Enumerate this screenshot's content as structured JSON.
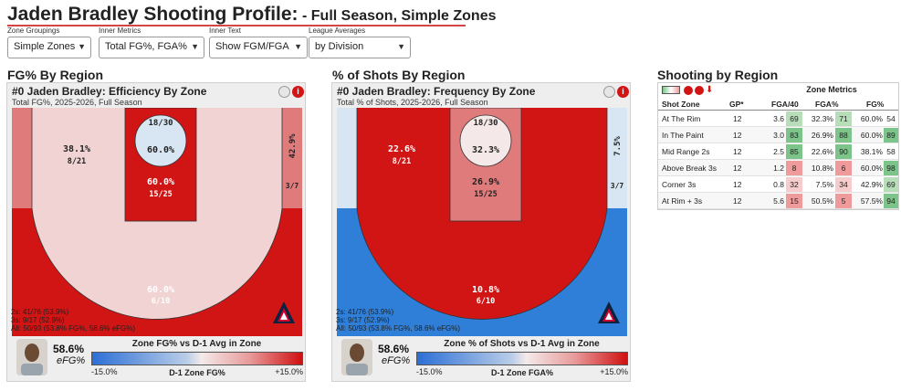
{
  "title": {
    "main": "Jaden Bradley Shooting Profile:",
    "dash": " - ",
    "season": "Full Season",
    "comma": ", ",
    "zones": "Simple Zones"
  },
  "controls": [
    {
      "label": "Zone Groupings",
      "value": "Simple Zones"
    },
    {
      "label": "Inner Metrics",
      "value": "Total FG%, FGA%"
    },
    {
      "label": "Inner Text",
      "value": "Show FGM/FGA"
    },
    {
      "label": "League Averages",
      "value": "by Division"
    }
  ],
  "sections": {
    "left": "FG% By Region",
    "middle": "% of Shots By Region",
    "right": "Shooting by Region"
  },
  "panels": [
    {
      "heading": "#0 Jaden Bradley: Efficiency By Zone",
      "subheading": "Total FG%, 2025-2026, Full Season",
      "zones": {
        "rim": {
          "top": "18/30",
          "bottom": "60.0%"
        },
        "paint": {
          "top": "60.0%",
          "bottom": "15/25"
        },
        "mid": {
          "top": "38.1%",
          "bottom": "8/21"
        },
        "corner": {
          "top": "42.9%",
          "bottom": "3/7"
        },
        "three": {
          "top": "60.0%",
          "bottom": "6/10"
        }
      },
      "stats": [
        "2s: 41/76 (53.9%)",
        "3s: 9/17 (52.9%)",
        "All: 50/93 (53.8% FG%, 58.6% eFG%)"
      ],
      "efg_value": "58.6%",
      "efg_label": "eFG%",
      "legend": {
        "title": "Zone FG% vs D-1 Avg in Zone",
        "low": "-15.0%",
        "mid": "D-1 Zone FG%",
        "high": "+15.0%"
      }
    },
    {
      "heading": "#0 Jaden Bradley: Frequency By Zone",
      "subheading": "Total % of Shots, 2025-2026, Full Season",
      "zones": {
        "rim": {
          "top": "18/30",
          "bottom": "32.3%"
        },
        "paint": {
          "top": "26.9%",
          "bottom": "15/25"
        },
        "mid": {
          "top": "22.6%",
          "bottom": "8/21"
        },
        "corner": {
          "top": "7.5%",
          "bottom": "3/7"
        },
        "three": {
          "top": "10.8%",
          "bottom": "6/10"
        }
      },
      "stats": [
        "2s: 41/76 (53.9%)",
        "3s: 9/17 (52.9%)",
        "All: 50/93 (53.8% FG%, 58.6% eFG%)"
      ],
      "efg_value": "58.6%",
      "efg_label": "eFG%",
      "legend": {
        "title": "Zone % of Shots vs D-1 Avg in Zone",
        "low": "-15.0%",
        "mid": "D-1 Zone FGA%",
        "high": "+15.0%"
      }
    }
  ],
  "colors": {
    "red": "#d11414",
    "light_red": "#e07b7b",
    "pale": "#f1d3d3",
    "blue": "#2f7fd8",
    "pale_blue": "#d8e6f4",
    "green": "#7cc48a",
    "pink": "#f09b9b"
  },
  "chart_data": {
    "type": "table",
    "header_group": "Zone Metrics",
    "columns": [
      "Shot Zone",
      "GP*",
      "FGA/40",
      "FGA%",
      "FG%"
    ],
    "rows": [
      {
        "zone": "At The Rim",
        "gp": "12",
        "fga40": "3.6",
        "fga40_pct": "69",
        "fgap": "32.3%",
        "fgap_pct": "71",
        "fg": "60.0%",
        "fg_pct": "54"
      },
      {
        "zone": "In The Paint",
        "gp": "12",
        "fga40": "3.0",
        "fga40_pct": "83",
        "fgap": "26.9%",
        "fgap_pct": "88",
        "fg": "60.0%",
        "fg_pct": "89"
      },
      {
        "zone": "Mid Range 2s",
        "gp": "12",
        "fga40": "2.5",
        "fga40_pct": "85",
        "fgap": "22.6%",
        "fgap_pct": "90",
        "fg": "38.1%",
        "fg_pct": "58"
      },
      {
        "zone": "Above Break 3s",
        "gp": "12",
        "fga40": "1.2",
        "fga40_pct": "8",
        "fgap": "10.8%",
        "fgap_pct": "6",
        "fg": "60.0%",
        "fg_pct": "98"
      },
      {
        "zone": "Corner 3s",
        "gp": "12",
        "fga40": "0.8",
        "fga40_pct": "32",
        "fgap": "7.5%",
        "fgap_pct": "34",
        "fg": "42.9%",
        "fg_pct": "69"
      },
      {
        "zone": "At Rim + 3s",
        "gp": "12",
        "fga40": "5.6",
        "fga40_pct": "15",
        "fgap": "50.5%",
        "fgap_pct": "5",
        "fg": "57.5%",
        "fg_pct": "94"
      }
    ]
  }
}
